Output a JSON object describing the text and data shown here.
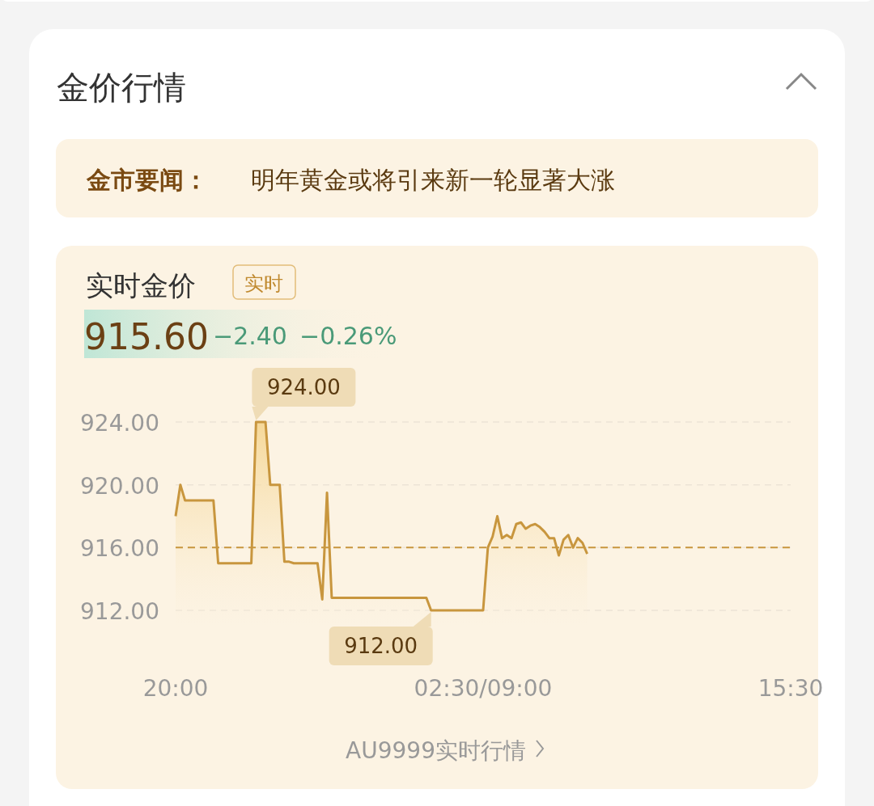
{
  "chart_data": {
    "type": "area",
    "title": "金价行情",
    "subtitle": "实时金价",
    "annotations": [
      "金市要闻：",
      "明年黄金或将引来新一轮显著大涨",
      "实时",
      "915.60",
      "−2.40",
      "−0.26%",
      "AU9999实时行情",
      "924.00",
      "912.00"
    ],
    "categories": [
      "20:00",
      null,
      null,
      null,
      null,
      null,
      null,
      null,
      null,
      null,
      null,
      null,
      null,
      null,
      null,
      null,
      null,
      null,
      null,
      null,
      null,
      null,
      null,
      null,
      null,
      null,
      null,
      null,
      null,
      null,
      null,
      null,
      null,
      null,
      null,
      null,
      null,
      null,
      null,
      null,
      null,
      null,
      null,
      null,
      null,
      null,
      null,
      null,
      null,
      null,
      null,
      null,
      null,
      null,
      null,
      null,
      null,
      null,
      null,
      null,
      null,
      null,
      null,
      null,
      null,
      "02:30/09:00",
      null,
      null,
      null,
      null,
      null,
      null,
      null,
      null,
      null,
      null,
      null,
      null,
      null,
      null,
      null,
      null,
      null,
      null,
      null,
      null,
      null,
      null,
      null,
      null,
      null,
      null,
      null,
      null,
      null,
      null,
      null,
      null,
      null,
      null,
      null,
      null,
      null,
      null,
      null,
      null,
      null,
      null,
      null,
      null,
      null,
      null,
      null,
      null,
      null,
      null,
      null,
      null,
      null,
      null,
      null,
      null,
      null,
      null,
      null,
      null,
      null,
      null,
      null,
      null,
      "15:30"
    ],
    "series": [
      {
        "color": "#c8963e",
        "values": [
          918,
          920,
          919,
          919,
          919,
          919,
          919,
          919,
          919,
          915,
          915,
          915,
          915,
          915,
          915,
          915,
          915,
          924,
          924,
          924,
          920,
          920,
          920,
          915.1,
          915.1,
          915,
          915,
          915,
          915,
          915,
          915,
          912.7,
          919.5,
          912.8,
          912.8,
          912.8,
          912.8,
          912.8,
          912.8,
          912.8,
          912.8,
          912.8,
          912.8,
          912.8,
          912.8,
          912.8,
          912.8,
          912.8,
          912.8,
          912.8,
          912.8,
          912.8,
          912.8,
          912.8,
          912,
          912,
          912,
          912,
          912,
          912,
          912,
          912,
          912,
          912,
          912,
          912,
          916,
          916.7,
          918,
          916.6,
          916.8,
          916.6,
          917.5,
          917.6,
          917.2,
          917.4,
          917.5,
          917.3,
          917,
          916.6,
          916.6,
          915.5,
          916.5,
          916.8,
          916,
          916.6,
          916.3,
          915.6,
          null,
          null,
          null,
          null,
          null,
          null,
          null,
          null,
          null,
          null,
          null,
          null,
          null,
          null,
          null,
          null,
          null,
          null,
          null,
          null,
          null,
          null,
          null,
          null,
          null,
          null,
          null,
          null,
          null,
          null,
          null,
          null,
          null,
          null,
          null,
          null,
          null,
          null,
          null,
          null,
          null,
          null,
          null
        ]
      }
    ],
    "ylim": [
      912,
      924
    ],
    "yticks": [
      {
        "value": 912,
        "label": "912.00"
      },
      {
        "value": 916,
        "label": "916.00"
      },
      {
        "value": 920,
        "label": "920.00"
      },
      {
        "value": 924,
        "label": "924.00"
      }
    ],
    "grid": "y",
    "ref_lines": [
      {
        "axis": "y",
        "value": 916,
        "color": "#c8963e",
        "line_style": "dashed"
      }
    ]
  }
}
